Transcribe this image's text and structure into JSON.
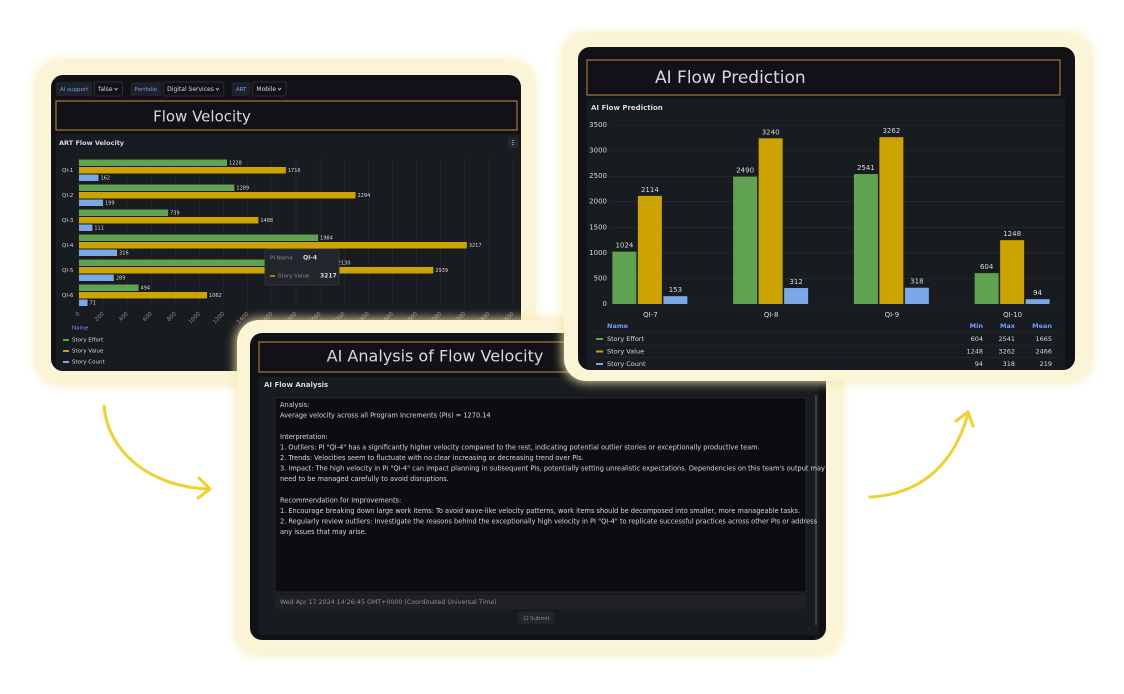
{
  "left_panel": {
    "filters": [
      {
        "label": "AI support",
        "value": "false"
      },
      {
        "label": "Portfolio",
        "value": "Digital Services"
      },
      {
        "label": "ART",
        "value": "Mobile"
      }
    ],
    "header": "Flow Velocity",
    "tooltip": {
      "key_label": "PI Name",
      "key_value": "QI-4",
      "series": "Story Value",
      "value": 3217
    }
  },
  "right_panel": {
    "header": "AI Flow Prediction"
  },
  "analysis_panel": {
    "header": "AI Analysis of Flow Velocity",
    "title": "AI Flow Analysis",
    "sections": [
      {
        "heading": "Analysis:",
        "lines": [
          "Average velocity across all Program Increments (PIs) = 1270.14"
        ]
      },
      {
        "heading": "Interpretation:",
        "lines": [
          "1. Outliers: PI \"QI-4\" has a significantly higher velocity compared to the rest, indicating potential outlier stories or exceptionally productive team.",
          "2. Trends: Velocities seem to fluctuate with no clear increasing or decreasing trend over PIs.",
          "3. Impact: The high velocity in PI \"QI-4\" can impact planning in subsequent PIs, potentially setting unrealistic expectations. Dependencies on this team's output may",
          "need to be managed carefully to avoid disruptions."
        ]
      },
      {
        "heading": "Recommendation for Improvements:",
        "lines": [
          "1. Encourage breaking down large work items: To avoid wave-like velocity patterns, work items should be decomposed into smaller, more manageable tasks.",
          "2. Regularly review outliers: Investigate the reasons behind the exceptionally high velocity in PI \"QI-4\" to replicate successful practices across other PIs or address",
          "any issues that may arise."
        ]
      }
    ],
    "timestamp": "Wed Apr 17 2024 14:26:45 GMT+0000 (Coordinated Universal Time)",
    "button": "Submit"
  },
  "chart_data": [
    {
      "type": "hbar",
      "title": "ART Flow Velocity",
      "categories": [
        "QI-1",
        "QI-2",
        "QI-3",
        "QI-4",
        "QI-5",
        "QI-6"
      ],
      "series": [
        {
          "name": "Story Effort",
          "color": "#5fa24f",
          "values": [
            1228,
            1289,
            739,
            1984,
            2130,
            494
          ]
        },
        {
          "name": "Story Value",
          "color": "#cca300",
          "values": [
            1716,
            2294,
            1488,
            3217,
            2939,
            1062
          ]
        },
        {
          "name": "Story Count",
          "color": "#7aa7e6",
          "values": [
            162,
            199,
            111,
            316,
            289,
            71
          ]
        }
      ],
      "xlim": [
        0,
        3600
      ],
      "xticks": [
        0,
        200,
        400,
        600,
        800,
        1000,
        1200,
        1400,
        1600,
        1800,
        2000,
        2200,
        2400,
        2600,
        2800,
        3000,
        3200,
        3400,
        3600
      ],
      "grid": true,
      "legend_title": "Name"
    },
    {
      "type": "bar",
      "title": "AI Flow Prediction",
      "categories": [
        "QI-7",
        "QI-8",
        "QI-9",
        "QI-10"
      ],
      "series": [
        {
          "name": "Story Effort",
          "color": "#5fa24f",
          "values": [
            1024,
            2490,
            2541,
            604
          ]
        },
        {
          "name": "Story Value",
          "color": "#cca300",
          "values": [
            2114,
            3240,
            3262,
            1248
          ]
        },
        {
          "name": "Story Count",
          "color": "#7aa7e6",
          "values": [
            153,
            312,
            318,
            94
          ]
        }
      ],
      "ylim": [
        0,
        3500
      ],
      "yticks": [
        0,
        500,
        1000,
        1500,
        2000,
        2500,
        3000,
        3500
      ],
      "grid": true,
      "legend_title": "Name",
      "legend_stats": {
        "columns": [
          "Min",
          "Max",
          "Mean"
        ],
        "rows": [
          [
            604,
            2541,
            1665
          ],
          [
            1248,
            3262,
            2466
          ],
          [
            94,
            318,
            219
          ]
        ]
      }
    }
  ]
}
